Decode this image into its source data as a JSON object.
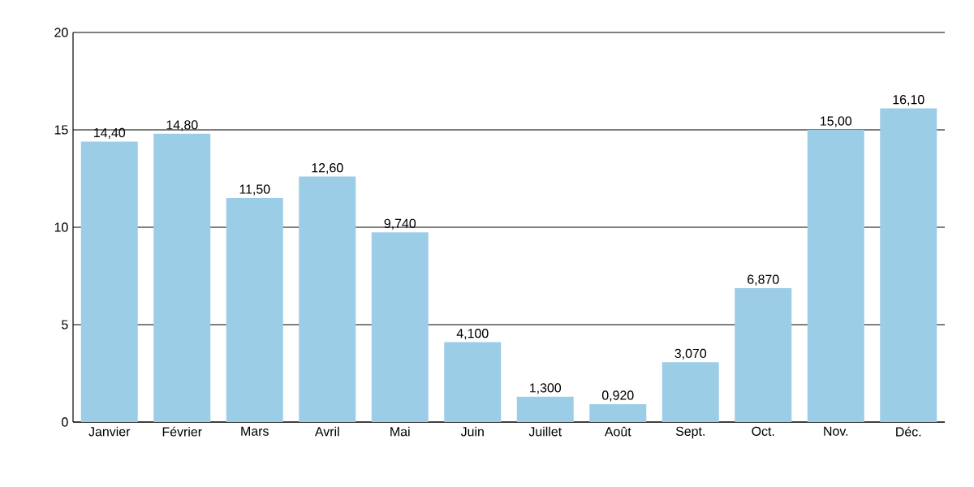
{
  "chart_data": {
    "type": "bar",
    "categories": [
      "Janvier",
      "Février",
      "Mars",
      "Avril",
      "Mai",
      "Juin",
      "Juillet",
      "Août",
      "Sept.",
      "Oct.",
      "Nov.",
      "Déc."
    ],
    "values": [
      14.4,
      14.8,
      11.5,
      12.6,
      9.74,
      4.1,
      1.3,
      0.92,
      3.07,
      6.87,
      15.0,
      16.1
    ],
    "value_labels": [
      "14,40",
      "14,80",
      "11,50",
      "12,60",
      "9,740",
      "4,100",
      "1,300",
      "0,920",
      "3,070",
      "6,870",
      "15,00",
      "16,10"
    ],
    "color": "#9ccde6",
    "ylim": [
      0,
      20
    ],
    "yticks": [
      0,
      5,
      10,
      15,
      20
    ],
    "grid": "y"
  }
}
